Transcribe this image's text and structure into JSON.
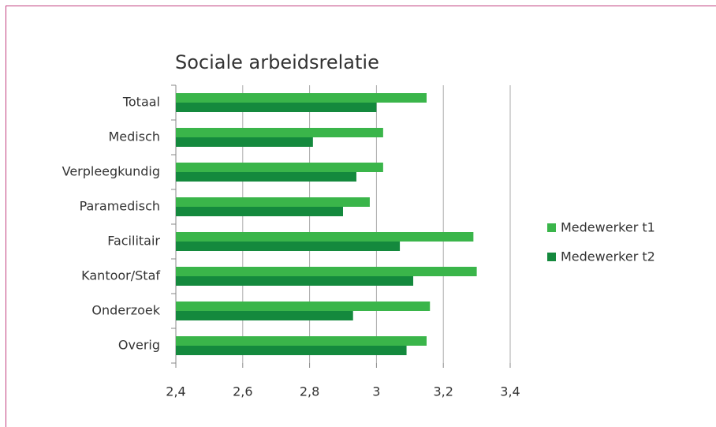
{
  "chart_data": {
    "type": "bar",
    "orientation": "horizontal",
    "title": "Sociale arbeidsrelatie",
    "categories": [
      "Totaal",
      "Medisch",
      "Verpleegkundig",
      "Paramedisch",
      "Facilitair",
      "Kantoor/Staf",
      "Onderzoek",
      "Overig"
    ],
    "series": [
      {
        "name": "Medewerker t1",
        "color": "#3ab54a",
        "values": [
          3.15,
          3.02,
          3.02,
          2.98,
          3.29,
          3.3,
          3.16,
          3.15
        ]
      },
      {
        "name": "Medewerker t2",
        "color": "#14893d",
        "values": [
          3.0,
          2.81,
          2.94,
          2.9,
          3.07,
          3.11,
          2.93,
          3.09
        ]
      }
    ],
    "xlim": [
      2.4,
      3.4
    ],
    "xticks": [
      {
        "value": 2.4,
        "label": "2,4"
      },
      {
        "value": 2.6,
        "label": "2,6"
      },
      {
        "value": 2.8,
        "label": "2,8"
      },
      3,
      {
        "value": 3.2,
        "label": "3,2"
      },
      {
        "value": 3.4,
        "label": "3,4"
      }
    ],
    "grid": true,
    "legend": "right"
  }
}
